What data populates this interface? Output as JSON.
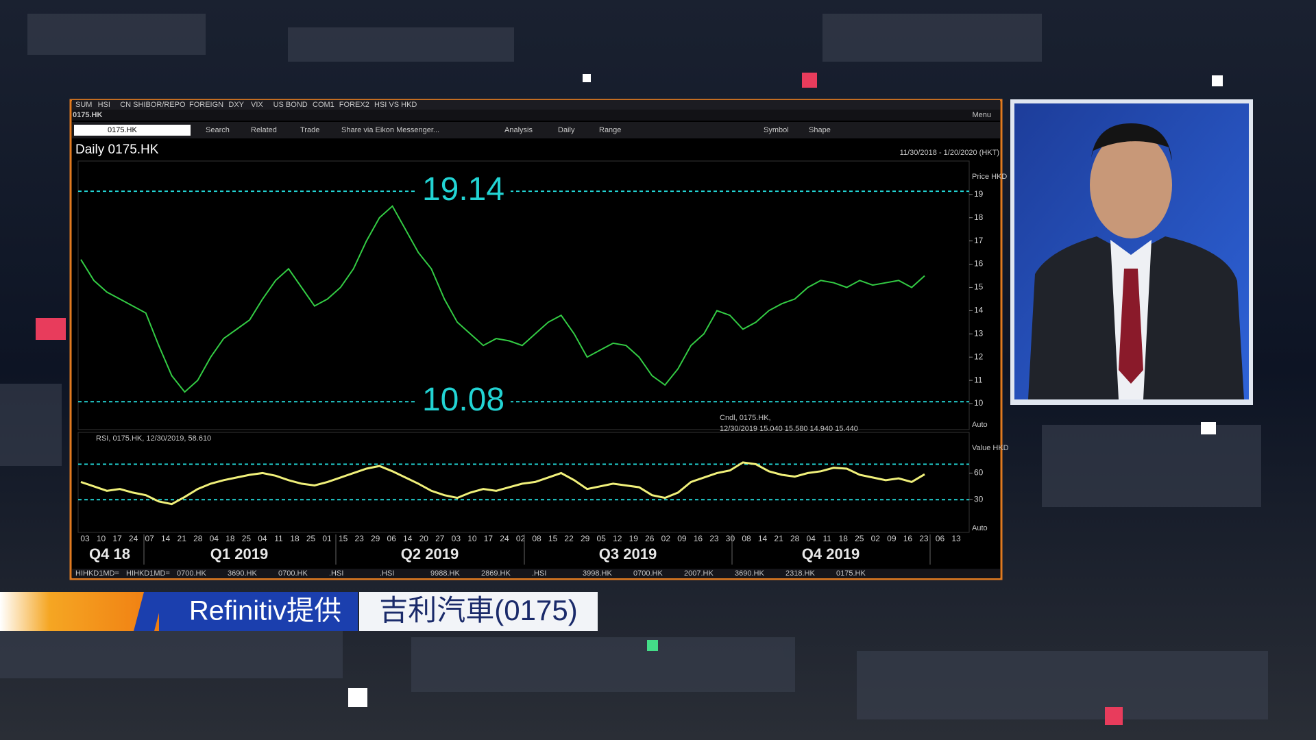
{
  "window": {
    "tabs": [
      "SUM",
      "HSI",
      "CN SHIBOR/REPO",
      "FOREIGN",
      "DXY",
      "VIX",
      "US BOND",
      "COM1",
      "FOREX2",
      "HSI VS HKD"
    ],
    "title": "0175.HK",
    "symbol": "0175.HK",
    "menu": "Menu",
    "toolbar": [
      "Search",
      "Related",
      "Trade",
      "Share via Eikon Messenger...",
      "Analysis",
      "Daily",
      "Range",
      "Symbol",
      "Shape"
    ],
    "bottom_tabs": [
      "HIHKD1MD=",
      "HIHKD1MD=",
      "0700.HK",
      "3690.HK",
      "0700.HK",
      ".HSI",
      ".HSI",
      "9988.HK",
      "2869.HK",
      ".HSI",
      "3998.HK",
      "0700.HK",
      "2007.HK",
      "3690.HK",
      "2318.HK",
      "0175.HK"
    ]
  },
  "chart_data": [
    {
      "type": "line",
      "title": "Daily 0175.HK",
      "subtitle": "11/30/2018 - 1/20/2020 (HKT)",
      "y_label": "Price HKD",
      "scale_label": "Auto",
      "legend_lines": [
        "Cndl, 0175.HK,",
        "12/30/2019 15.040 15.580 14.940 15.440"
      ],
      "color": "#33cc44",
      "values": [
        16.2,
        15.3,
        14.8,
        14.5,
        14.2,
        13.9,
        12.5,
        11.2,
        10.5,
        11.0,
        12.0,
        12.8,
        13.2,
        13.6,
        14.5,
        15.3,
        15.8,
        15.0,
        14.2,
        14.5,
        15.0,
        15.8,
        17.0,
        18.0,
        18.5,
        17.5,
        16.5,
        15.8,
        14.5,
        13.5,
        13.0,
        12.5,
        12.8,
        12.7,
        12.5,
        13.0,
        13.5,
        13.8,
        13.0,
        12.0,
        12.3,
        12.6,
        12.5,
        12.0,
        11.2,
        10.8,
        11.5,
        12.5,
        13.0,
        14.0,
        13.8,
        13.2,
        13.5,
        14.0,
        14.3,
        14.5,
        15.0,
        15.3,
        15.2,
        15.0,
        15.3,
        15.1,
        15.2,
        15.3,
        15.0,
        15.5
      ],
      "levels": [
        19.14,
        10.08
      ],
      "level_color": "#22d3d3",
      "ylim": [
        8.88,
        20.44
      ],
      "yticks": [
        10,
        11,
        12,
        13,
        14,
        15,
        16,
        17,
        18,
        19
      ],
      "xtick_labels": [
        "03",
        "10",
        "17",
        "24",
        "07",
        "14",
        "21",
        "28",
        "04",
        "18",
        "25",
        "04",
        "11",
        "18",
        "25",
        "01",
        "15",
        "23",
        "29",
        "06",
        "14",
        "20",
        "27",
        "03",
        "10",
        "17",
        "24",
        "02",
        "08",
        "15",
        "22",
        "29",
        "05",
        "12",
        "19",
        "26",
        "02",
        "09",
        "16",
        "23",
        "30",
        "08",
        "14",
        "21",
        "28",
        "04",
        "11",
        "18",
        "25",
        "02",
        "09",
        "16",
        "23",
        "06",
        "13"
      ],
      "quarters": [
        "Q4 18",
        "Q1 2019",
        "Q2 2019",
        "Q3 2019",
        "Q4 2019"
      ]
    },
    {
      "type": "line",
      "title": "RSI, 0175.HK, 12/30/2019, 58.610",
      "y_label": "Value HKD",
      "scale_label": "Auto",
      "color": "#f0f07a",
      "values": [
        50,
        45,
        40,
        42,
        38,
        35,
        28,
        25,
        33,
        42,
        48,
        52,
        55,
        58,
        60,
        57,
        52,
        48,
        46,
        50,
        55,
        60,
        65,
        68,
        62,
        55,
        48,
        40,
        35,
        32,
        38,
        42,
        40,
        44,
        48,
        50,
        55,
        60,
        52,
        42,
        45,
        48,
        46,
        44,
        35,
        32,
        38,
        50,
        55,
        60,
        63,
        72,
        70,
        62,
        58,
        56,
        60,
        62,
        66,
        65,
        58,
        55,
        52,
        54,
        50,
        58.61
      ],
      "levels": [
        70,
        30
      ],
      "level_color": "#22d3d3",
      "ylim": [
        -7,
        106
      ],
      "yticks": [
        30,
        60
      ]
    }
  ],
  "banner": {
    "source": "Refinitiv提供",
    "name": "吉利汽車(0175)"
  }
}
